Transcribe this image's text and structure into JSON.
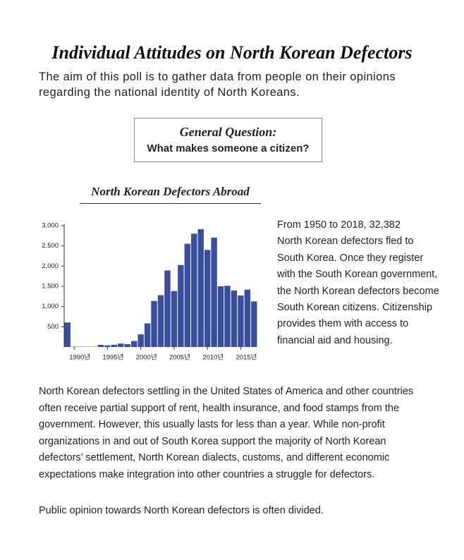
{
  "header": {
    "title": "Individual Attitudes on North Korean Defectors",
    "subtitle_lines": [
      "The aim of this poll is to gather data from people on their opinions",
      "regarding the national identity of North Koreans."
    ]
  },
  "question_box": {
    "label": "General Question:",
    "question": "What makes someone a  citizen?"
  },
  "chart_data": {
    "type": "bar",
    "title": "North Korean Defectors Abroad",
    "categories": [
      null,
      "1990년",
      null,
      null,
      null,
      null,
      "1995년",
      null,
      null,
      null,
      null,
      "2000년",
      null,
      null,
      null,
      null,
      "2005년",
      null,
      null,
      null,
      null,
      "2010년",
      null,
      null,
      null,
      null,
      "2015년",
      null,
      null
    ],
    "values": [
      607,
      9,
      9,
      8,
      8,
      52,
      41,
      56,
      85,
      71,
      148,
      312,
      583,
      1139,
      1281,
      1894,
      1383,
      2028,
      2554,
      2803,
      2914,
      2402,
      2706,
      1502,
      1514,
      1397,
      1275,
      1418,
      1127
    ],
    "color": "#3a4e9f",
    "ylim": [
      0,
      3000
    ],
    "yticks": [
      500,
      {
        "value": 1000,
        "label": "1,000"
      },
      {
        "value": 1500,
        "label": "1,500"
      },
      {
        "value": 2000,
        "label": "2,000"
      },
      {
        "value": 2500,
        "label": "2,500"
      },
      {
        "value": 3000,
        "label": "3,000"
      }
    ]
  },
  "side_text_lines": [
    "From 1950 to 2018, 32,382",
    "North Korean defectors fled to",
    "South Korea. Once they register",
    "with the South Korean government,",
    "the North Korean defectors become",
    "South Korean citizens. Citizenship",
    "provides them with access to",
    "financial aid and housing."
  ],
  "body_lines": [
    "North Korean defectors settling in the United States of America and other countries",
    "often receive partial support of rent, health insurance, and food stamps from the",
    "government. However, this usually lasts for less than a year. While non-profit",
    "organizations in and out of South Korea support the majority of North Korean",
    "defectors’ settlement, North Korean dialects, customs, and different economic",
    "expectations make integration into other countries a struggle for defectors."
  ],
  "closing": "Public opinion towards North Korean defectors is often divided."
}
